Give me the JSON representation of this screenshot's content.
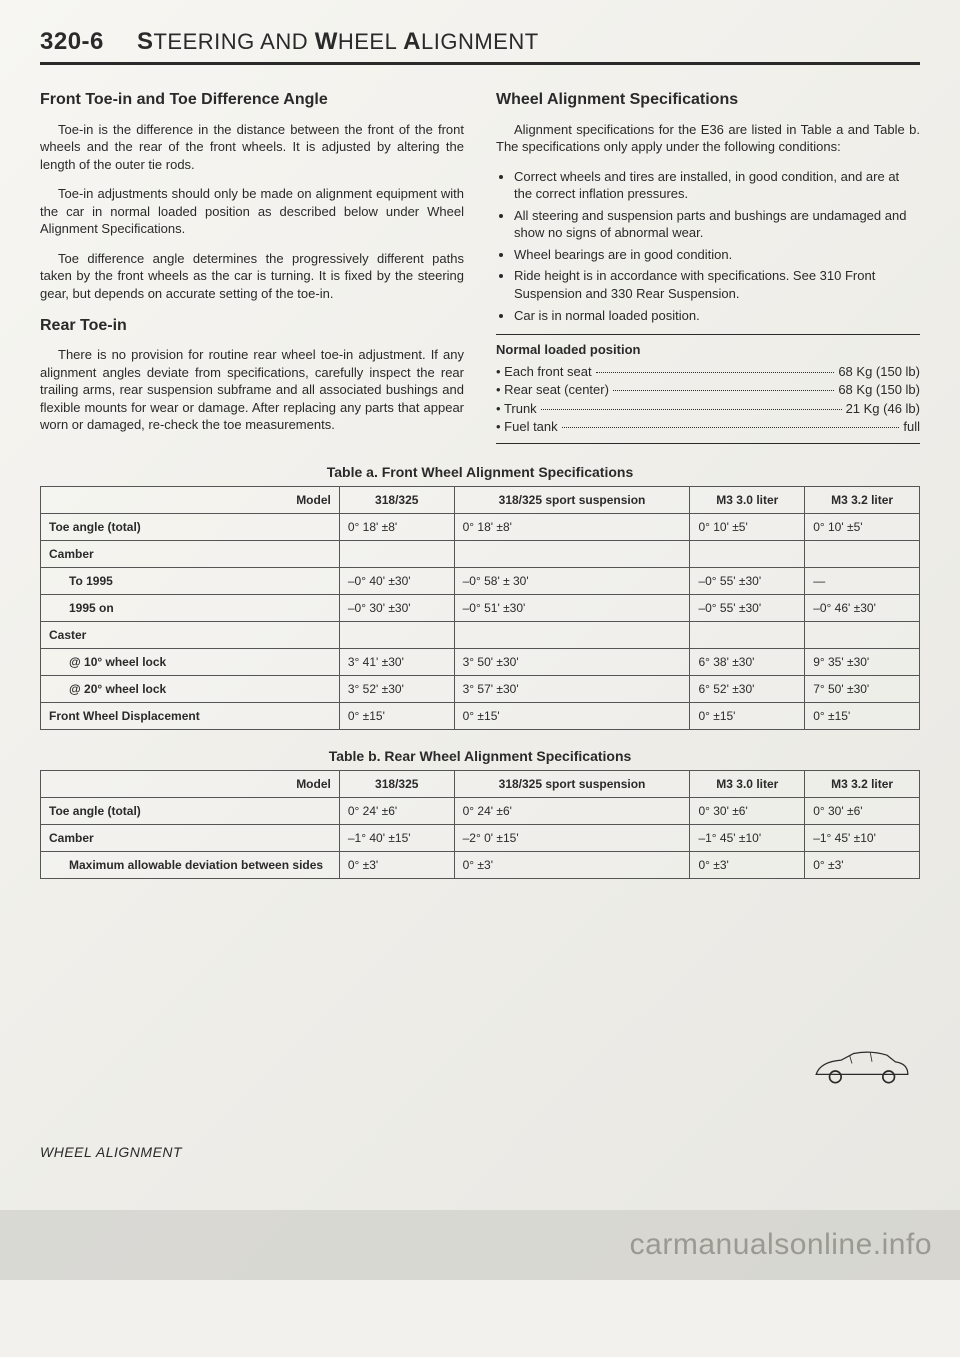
{
  "header": {
    "page_num": "320-6",
    "title_caps": "S",
    "title_rest1": "TEERING AND ",
    "title_caps2": "W",
    "title_rest2": "HEEL ",
    "title_caps3": "A",
    "title_rest3": "LIGNMENT"
  },
  "left": {
    "h1": "Front Toe-in and Toe Difference Angle",
    "p1": "Toe-in is the difference in the distance between the front of the front wheels and the rear of the front wheels. It is adjusted by altering the length of the outer tie rods.",
    "p2": "Toe-in adjustments should only be made on alignment equipment with the car in normal loaded position as described below under Wheel Alignment Specifications.",
    "p3": "Toe difference angle determines the progressively different paths taken by the front wheels as the car is turning. It is fixed by the steering gear, but depends on accurate setting of the toe-in.",
    "h2": "Rear Toe-in",
    "p4": "There is no provision for routine rear wheel toe-in adjustment. If any alignment angles deviate from specifications, carefully inspect the rear trailing arms, rear suspension subframe and all associated bushings and flexible mounts for wear or damage. After replacing any parts that appear worn or damaged, re-check the toe measurements."
  },
  "right": {
    "h1": "Wheel Alignment Specifications",
    "p1": "Alignment specifications for the E36 are listed in Table a and Table b. The specifications only apply under the following conditions:",
    "bullets": [
      "Correct wheels and tires are installed, in good condition, and are at the correct inflation pressures.",
      "All steering and suspension parts and bushings are undamaged and show no signs of abnormal wear.",
      "Wheel bearings are in good condition.",
      "Ride height is in accordance with specifications. See 310 Front Suspension and 330 Rear Suspension.",
      "Car is in normal loaded position."
    ],
    "nlp_title": "Normal loaded position",
    "nlp": [
      {
        "label": "Each front seat",
        "value": "68 Kg (150 lb)"
      },
      {
        "label": "Rear seat (center)",
        "value": "68 Kg (150 lb)"
      },
      {
        "label": "Trunk",
        "value": "21 Kg (46 lb)"
      },
      {
        "label": "Fuel tank",
        "value": "full"
      }
    ]
  },
  "table_a": {
    "caption": "Table a. Front Wheel Alignment Specifications",
    "columns": [
      "Model",
      "318/325",
      "318/325 sport suspension",
      "M3 3.0 liter",
      "M3 3.2 liter"
    ],
    "rows": [
      {
        "head": "Toe angle (total)",
        "cells": [
          "0° 18' ±8'",
          "0° 18' ±8'",
          "0° 10' ±5'",
          "0° 10' ±5'"
        ]
      },
      {
        "head": "Camber",
        "cells": [
          "",
          "",
          "",
          ""
        ]
      },
      {
        "sub": "To 1995",
        "cells": [
          "–0° 40' ±30'",
          "–0° 58' ± 30'",
          "–0° 55' ±30'",
          "—"
        ]
      },
      {
        "sub": "1995 on",
        "cells": [
          "–0° 30' ±30'",
          "–0° 51' ±30'",
          "–0° 55' ±30'",
          "–0° 46' ±30'"
        ]
      },
      {
        "head": "Caster",
        "cells": [
          "",
          "",
          "",
          ""
        ]
      },
      {
        "sub": "@ 10° wheel lock",
        "cells": [
          "3° 41' ±30'",
          "3° 50' ±30'",
          "6° 38' ±30'",
          "9° 35' ±30'"
        ]
      },
      {
        "sub": "@ 20° wheel lock",
        "cells": [
          "3° 52' ±30'",
          "3° 57' ±30'",
          "6° 52' ±30'",
          "7° 50' ±30'"
        ]
      },
      {
        "head": "Front Wheel Displacement",
        "cells": [
          "0° ±15'",
          "0° ±15'",
          "0° ±15'",
          "0° ±15'"
        ]
      }
    ]
  },
  "table_b": {
    "caption": "Table b. Rear Wheel Alignment Specifications",
    "columns": [
      "Model",
      "318/325",
      "318/325 sport suspension",
      "M3 3.0 liter",
      "M3 3.2 liter"
    ],
    "rows": [
      {
        "head": "Toe angle (total)",
        "cells": [
          "0° 24' ±6'",
          "0° 24' ±6'",
          "0° 30' ±6'",
          "0° 30' ±6'"
        ]
      },
      {
        "head": "Camber",
        "cells": [
          "–1° 40' ±15'",
          "–2° 0' ±15'",
          "–1° 45' ±10'",
          "–1° 45' ±10'"
        ]
      },
      {
        "sub": "Maximum allowable deviation between sides",
        "cells": [
          "0° ±3'",
          "0° ±3'",
          "0° ±3'",
          "0° ±3'"
        ]
      }
    ]
  },
  "footer": "WHEEL ALIGNMENT",
  "watermark": "carmanualsonline.info"
}
